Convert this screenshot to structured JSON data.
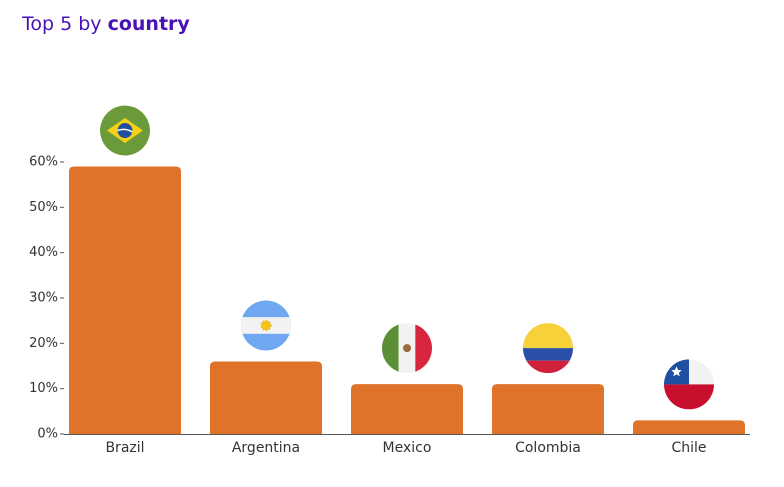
{
  "chart_data": {
    "type": "bar",
    "title_parts": [
      "Top 5 by",
      "country"
    ],
    "categories": [
      "Brazil",
      "Argentina",
      "Mexico",
      "Colombia",
      "Chile"
    ],
    "values": [
      59,
      16,
      11,
      11,
      3
    ],
    "color": "#e0732a",
    "ylim": [
      0,
      60
    ],
    "yticks": [
      {
        "value": 0,
        "label": "0%"
      },
      {
        "value": 10,
        "label": "10%"
      },
      {
        "value": 20,
        "label": "20%"
      },
      {
        "value": 30,
        "label": "30%"
      },
      {
        "value": 40,
        "label": "40%"
      },
      {
        "value": 50,
        "label": "50%"
      },
      {
        "value": 60,
        "label": "60%"
      }
    ],
    "grid": false
  }
}
